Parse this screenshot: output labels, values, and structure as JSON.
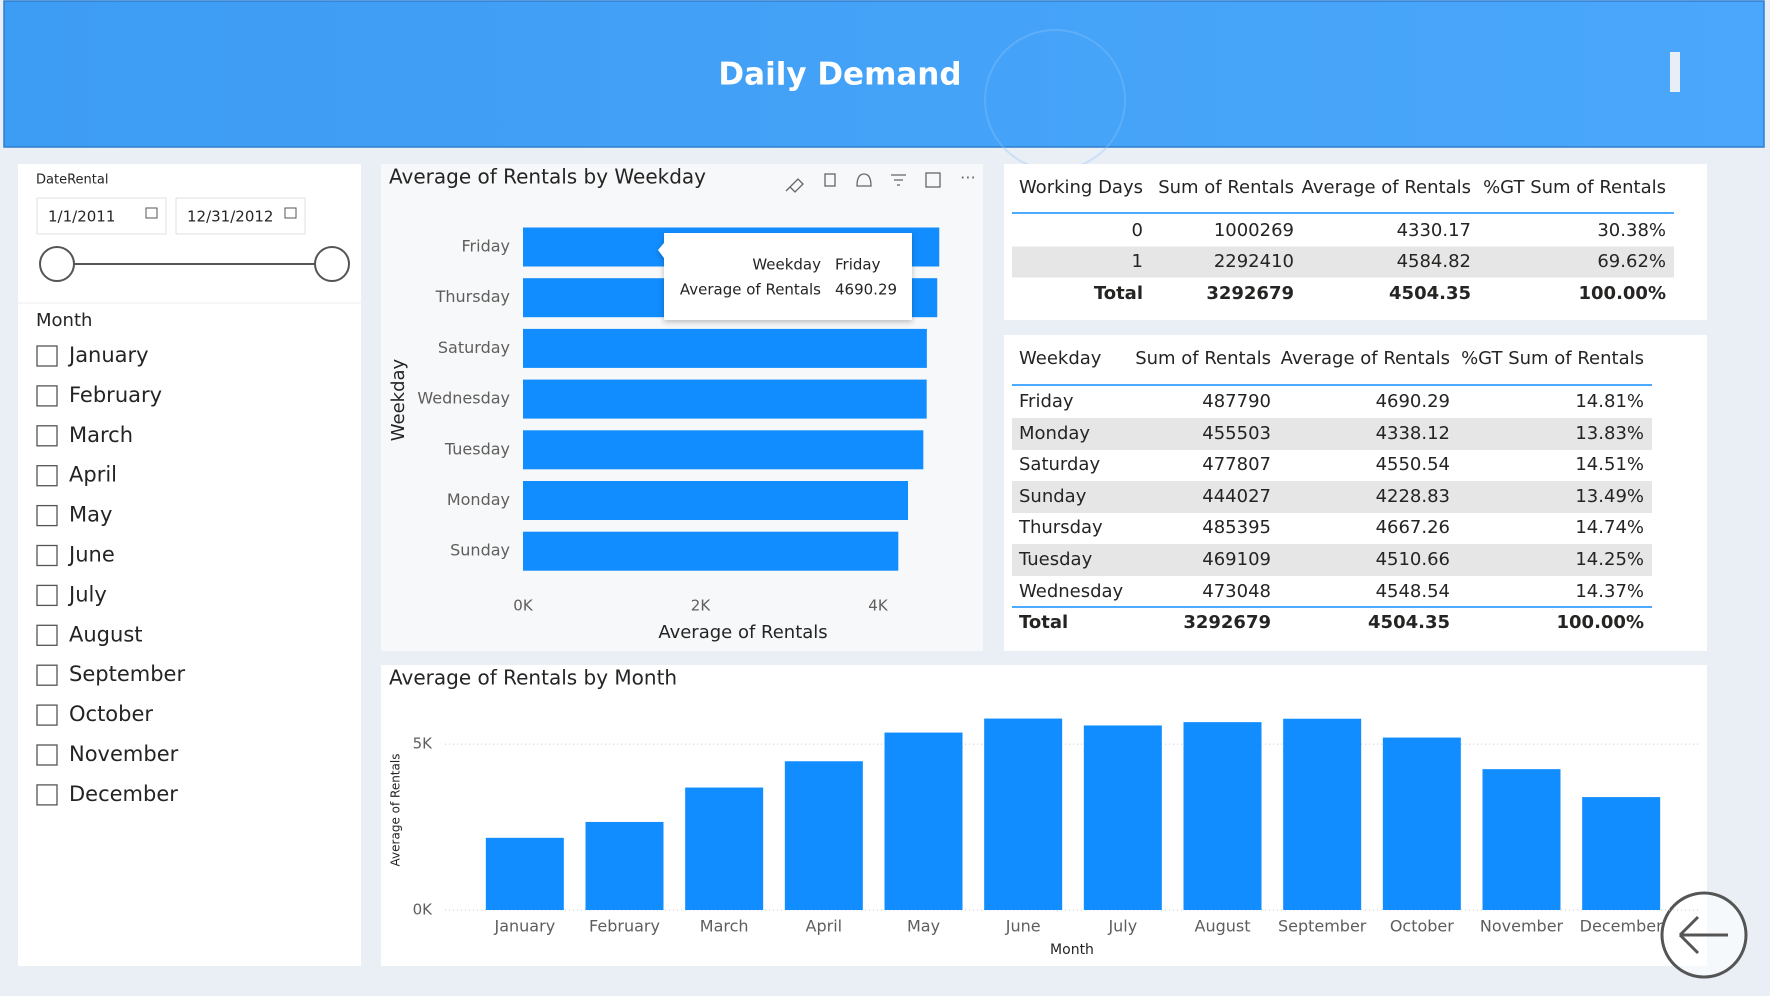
{
  "header": {
    "title": "Daily Demand"
  },
  "date_slicer": {
    "label": "DateRental",
    "start": "1/1/2011",
    "end": "12/31/2012"
  },
  "month_slicer": {
    "label": "Month",
    "options": [
      "January",
      "February",
      "March",
      "April",
      "May",
      "June",
      "July",
      "August",
      "September",
      "October",
      "November",
      "December"
    ]
  },
  "chart_data": [
    {
      "type": "hbar",
      "title": "Average of Rentals by Weekday",
      "x_label": "Average of Rentals",
      "y_label": "Weekday",
      "categories": [
        "Friday",
        "Thursday",
        "Saturday",
        "Wednesday",
        "Tuesday",
        "Monday",
        "Sunday"
      ],
      "values": [
        4690.29,
        4667.26,
        4550.54,
        4548.54,
        4510.66,
        4338.12,
        4228.83
      ],
      "color": "#118dff",
      "xlim": [
        0,
        4800
      ],
      "xticks": [
        {
          "value": 0,
          "label": "0K"
        },
        {
          "value": 2000,
          "label": "2K"
        },
        {
          "value": 4000,
          "label": "4K"
        }
      ],
      "tooltip": {
        "labels": [
          "Weekday",
          "Average of Rentals"
        ]
      }
    },
    {
      "type": "bar",
      "title": "Average of Rentals by Month",
      "x_label": "Month",
      "y_label": "Average of Rentals",
      "categories": [
        "January",
        "February",
        "March",
        "April",
        "May",
        "June",
        "July",
        "August",
        "September",
        "October",
        "November",
        "December"
      ],
      "values": [
        2176,
        2655,
        3692,
        4485,
        5350,
        5772,
        5564,
        5664,
        5767,
        5199,
        4247,
        3404
      ],
      "color": "#118dff",
      "ylim": [
        0,
        6000
      ],
      "yticks": [
        {
          "value": 0,
          "label": "0K"
        },
        {
          "value": 5000,
          "label": "5K"
        }
      ],
      "grid": true
    }
  ],
  "tables": [
    {
      "columns": [
        "Working Days",
        "Sum of Rentals",
        "Average of Rentals",
        "%GT Sum of Rentals"
      ],
      "rows": [
        [
          "0",
          "1000269",
          "4330.17",
          "30.38%"
        ],
        [
          "1",
          "2292410",
          "4584.82",
          "69.62%"
        ]
      ],
      "total": [
        "Total",
        "3292679",
        "4504.35",
        "100.00%"
      ]
    },
    {
      "columns": [
        "Weekday",
        "Sum of Rentals",
        "Average of Rentals",
        "%GT Sum of Rentals"
      ],
      "rows": [
        [
          "Friday",
          "487790",
          "4690.29",
          "14.81%"
        ],
        [
          "Monday",
          "455503",
          "4338.12",
          "13.83%"
        ],
        [
          "Saturday",
          "477807",
          "4550.54",
          "14.51%"
        ],
        [
          "Sunday",
          "444027",
          "4228.83",
          "13.49%"
        ],
        [
          "Thursday",
          "485395",
          "4667.26",
          "14.74%"
        ],
        [
          "Tuesday",
          "469109",
          "4510.66",
          "14.25%"
        ],
        [
          "Wednesday",
          "473048",
          "4548.54",
          "14.37%"
        ]
      ],
      "total": [
        "Total",
        "3292679",
        "4504.35",
        "100.00%"
      ]
    }
  ]
}
